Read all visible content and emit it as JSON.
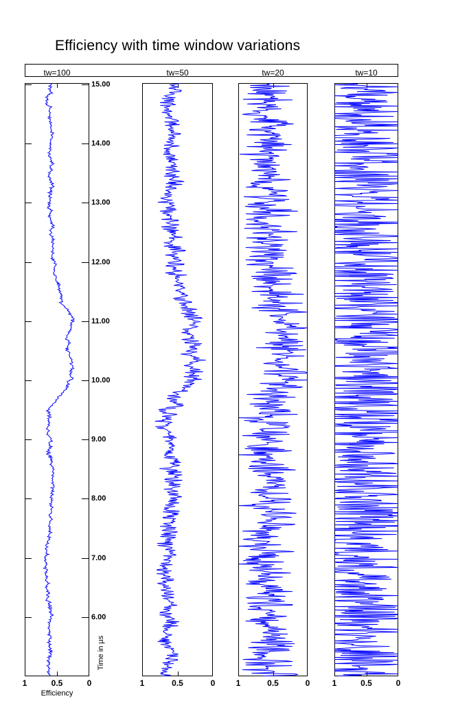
{
  "title": "Efficiency with time window variations",
  "colors": {
    "trace": "#0000ff",
    "axis": "#000000",
    "background": "#ffffff"
  },
  "chart_data": {
    "type": "line",
    "title": "Efficiency with time window variations",
    "xlabel": "Efficiency",
    "ylabel": "Time in µs",
    "orientation": "vertical-traces",
    "x_axis": {
      "min": 0,
      "max": 1,
      "reversed": true,
      "tick_values": [
        1,
        0.5,
        0
      ],
      "tick_labels": [
        "1",
        "0.5",
        "0"
      ]
    },
    "y_axis": {
      "top": 15.02,
      "bottom": 5.0,
      "tick_values": [
        15,
        14,
        13,
        12,
        11,
        10,
        9,
        8,
        7,
        6
      ],
      "tick_labels": [
        "15.00",
        "14.00",
        "13.00",
        "12.00",
        "11.00",
        "10.00",
        "9.00",
        "8.00",
        "7.00",
        "6.00"
      ]
    },
    "grid": false,
    "legend": false,
    "trace_color": "#0000ff",
    "n_points_per_panel": 864,
    "panels": [
      {
        "label": "tw=100",
        "time_window": 100,
        "noise_profile": {
          "seed": 7,
          "ar": 0.88,
          "ar_sigma": 0.008,
          "spike_amp": 0.03,
          "spike_pow": 2.0,
          "mean_weight": 1.0,
          "clip": [
            0.02,
            0.98
          ]
        }
      },
      {
        "label": "tw=50",
        "time_window": 50,
        "noise_profile": {
          "seed": 13,
          "ar": 0.8,
          "ar_sigma": 0.02,
          "spike_amp": 0.13,
          "spike_pow": 2.0,
          "mean_weight": 1.0,
          "clip": [
            0.02,
            0.98
          ]
        }
      },
      {
        "label": "tw=20",
        "time_window": 20,
        "noise_profile": {
          "seed": 21,
          "ar": 0.6,
          "ar_sigma": 0.04,
          "spike_amp": 0.38,
          "spike_pow": 1.8,
          "mean_weight": 0.75,
          "clip": [
            0.01,
            0.99
          ]
        }
      },
      {
        "label": "tw=10",
        "time_window": 10,
        "noise_profile": {
          "seed": 42,
          "ar": 0.45,
          "ar_sigma": 0.05,
          "spike_amp": 0.8,
          "spike_pow": 1.4,
          "mean_weight": 0.5,
          "clip": [
            0.0,
            1.0
          ]
        }
      }
    ],
    "mean_efficiency_anchors": [
      [
        15.1,
        0.6
      ],
      [
        14.7,
        0.63
      ],
      [
        14.3,
        0.57
      ],
      [
        13.9,
        0.61
      ],
      [
        13.4,
        0.58
      ],
      [
        12.9,
        0.61
      ],
      [
        12.3,
        0.56
      ],
      [
        11.7,
        0.53
      ],
      [
        11.3,
        0.42
      ],
      [
        11.05,
        0.26
      ],
      [
        10.75,
        0.34
      ],
      [
        10.45,
        0.32
      ],
      [
        10.05,
        0.27
      ],
      [
        9.8,
        0.42
      ],
      [
        9.55,
        0.64
      ],
      [
        9.0,
        0.61
      ],
      [
        8.4,
        0.58
      ],
      [
        7.9,
        0.6
      ],
      [
        7.4,
        0.62
      ],
      [
        6.9,
        0.67
      ],
      [
        6.6,
        0.68
      ],
      [
        6.2,
        0.61
      ],
      [
        5.6,
        0.63
      ],
      [
        4.9,
        0.6
      ]
    ]
  }
}
